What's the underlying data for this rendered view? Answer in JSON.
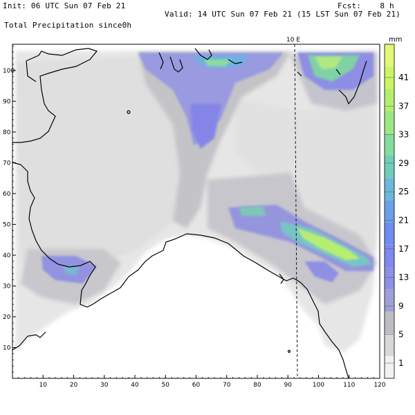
{
  "header": {
    "init": "Init: 06 UTC Sun 07 Feb 21",
    "fcst": "Fcst:    8 h",
    "valid": "Valid: 14 UTC Sun 07 Feb 21 (15 LST Sun 07 Feb 21)",
    "field": "Total Precipitation since0h"
  },
  "meridian_label": "10 E",
  "axes": {
    "x_ticks": [
      "10",
      "20",
      "30",
      "40",
      "50",
      "60",
      "70",
      "80",
      "90",
      "100",
      "110",
      "120"
    ],
    "y_ticks": [
      "10",
      "20",
      "30",
      "40",
      "50",
      "60",
      "70",
      "80",
      "90",
      "100"
    ]
  },
  "colorbar": {
    "unit": "mm",
    "labels": [
      "1",
      "5",
      "9",
      "13",
      "17",
      "21",
      "25",
      "29",
      "33",
      "37",
      "41"
    ],
    "colors": [
      "#f2f2f2",
      "#d8d8d8",
      "#bcbcc4",
      "#a0a0d8",
      "#8f8fe6",
      "#7f88ee",
      "#6f8cf0",
      "#6aa0e6",
      "#6cb8d8",
      "#70cdb8",
      "#84dc9c",
      "#9ce684",
      "#b4ee70",
      "#ccf464",
      "#e2f876"
    ]
  },
  "colors": {
    "coast": "#000000",
    "meridian": "#000000"
  }
}
